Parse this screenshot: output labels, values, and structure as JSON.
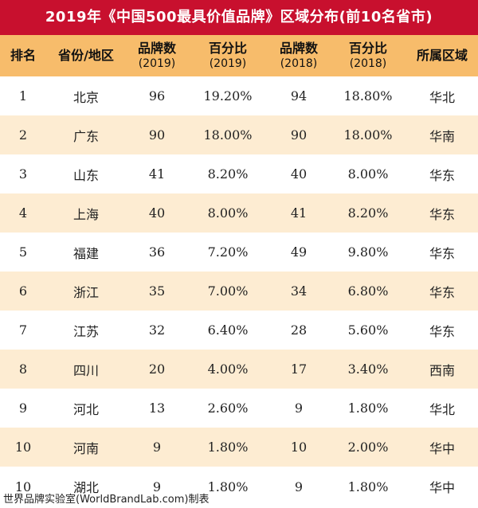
{
  "title": "2019年《中国500最具价值品牌》区域分布(前10名省市)",
  "headers": [
    {
      "main": "排名",
      "sub": ""
    },
    {
      "main": "省份/地区",
      "sub": ""
    },
    {
      "main": "品牌数",
      "sub": "(2019)"
    },
    {
      "main": "百分比",
      "sub": "(2019)"
    },
    {
      "main": "品牌数",
      "sub": "(2018)"
    },
    {
      "main": "百分比",
      "sub": "(2018)"
    },
    {
      "main": "所属区域",
      "sub": ""
    }
  ],
  "rows": [
    [
      "1",
      "北京",
      "96",
      "19.20%",
      "94",
      "18.80%",
      "华北"
    ],
    [
      "2",
      "广东",
      "90",
      "18.00%",
      "90",
      "18.00%",
      "华南"
    ],
    [
      "3",
      "山东",
      "41",
      "8.20%",
      "40",
      "8.00%",
      "华东"
    ],
    [
      "4",
      "上海",
      "40",
      "8.00%",
      "41",
      "8.20%",
      "华东"
    ],
    [
      "5",
      "福建",
      "36",
      "7.20%",
      "49",
      "9.80%",
      "华东"
    ],
    [
      "6",
      "浙江",
      "35",
      "7.00%",
      "34",
      "6.80%",
      "华东"
    ],
    [
      "7",
      "江苏",
      "32",
      "6.40%",
      "28",
      "5.60%",
      "华东"
    ],
    [
      "8",
      "四川",
      "20",
      "4.00%",
      "17",
      "3.40%",
      "西南"
    ],
    [
      "9",
      "河北",
      "13",
      "2.60%",
      "9",
      "1.80%",
      "华北"
    ],
    [
      "10",
      "河南",
      "9",
      "1.80%",
      "10",
      "2.00%",
      "华中"
    ],
    [
      "10",
      "湖北",
      "9",
      "1.80%",
      "9",
      "1.80%",
      "华中"
    ]
  ],
  "footer": "世界品牌实验室(WorldBrandLab.com)制表",
  "colors": {
    "title_bg": "#c8102e",
    "header_bg": "#f7bc6b",
    "stripe_bg": "#fdecd2"
  }
}
